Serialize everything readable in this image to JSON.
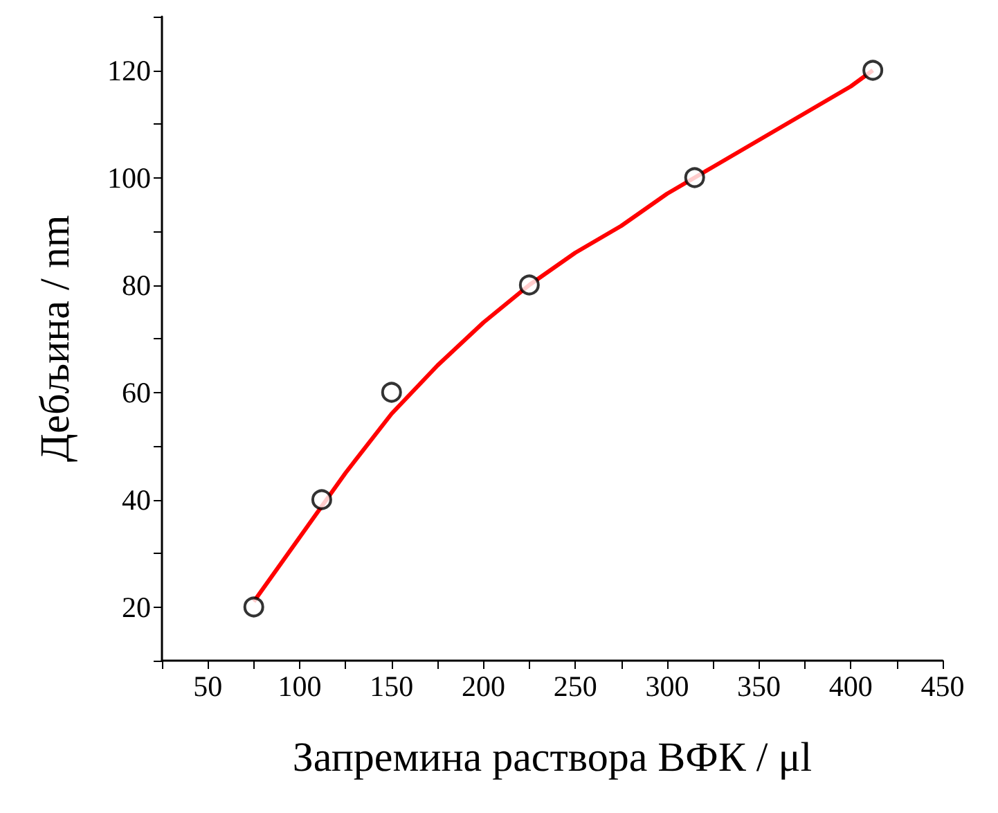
{
  "chart_data": {
    "type": "scatter",
    "xlabel": "Запремина раствора ВФК / μl",
    "ylabel": "Дебљина / nm",
    "xlim": [
      25,
      450
    ],
    "xticks": [
      {
        "value": 25,
        "label": null
      },
      50,
      {
        "value": 75,
        "label": null
      },
      100,
      {
        "value": 125,
        "label": null
      },
      150,
      {
        "value": 175,
        "label": null
      },
      200,
      {
        "value": 225,
        "label": null
      },
      250,
      {
        "value": 275,
        "label": null
      },
      300,
      {
        "value": 325,
        "label": null
      },
      350,
      {
        "value": 375,
        "label": null
      },
      400,
      {
        "value": 425,
        "label": null
      },
      450
    ],
    "ylim": [
      10,
      130
    ],
    "yticks": [
      {
        "value": 10,
        "label": null
      },
      20,
      {
        "value": 30,
        "label": null
      },
      40,
      {
        "value": 50,
        "label": null
      },
      60,
      {
        "value": 70,
        "label": null
      },
      80,
      {
        "value": 90,
        "label": null
      },
      100,
      {
        "value": 110,
        "label": null
      },
      120,
      {
        "value": 130,
        "label": null
      }
    ],
    "grid": false,
    "series": [
      {
        "color": "#000000",
        "marker": "circle",
        "x": [
          75,
          112,
          150,
          225,
          315,
          412
        ],
        "values": [
          20,
          40,
          60,
          80,
          100,
          120
        ]
      },
      {
        "type": "line",
        "color": "#ff0000",
        "marker": "none",
        "line_style": "solid",
        "x": [
          75,
          100,
          125,
          150,
          175,
          200,
          225,
          250,
          275,
          300,
          325,
          350,
          375,
          400,
          412
        ],
        "values": [
          21,
          33,
          45,
          56,
          65,
          73,
          80,
          86,
          91,
          97,
          102,
          107,
          112,
          117,
          120
        ]
      }
    ]
  }
}
